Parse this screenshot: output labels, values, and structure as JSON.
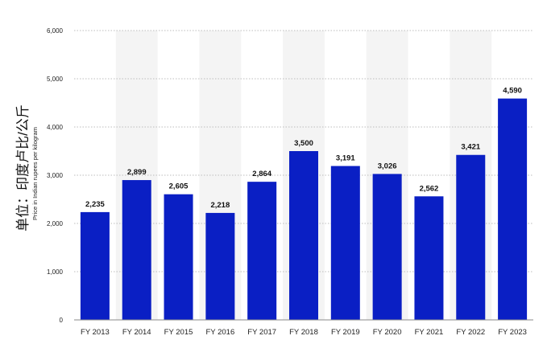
{
  "chart_data": {
    "type": "bar",
    "categories": [
      "FY 2013",
      "FY 2014",
      "FY 2015",
      "FY 2016",
      "FY 2017",
      "FY 2018",
      "FY 2019",
      "FY 2020",
      "FY 2021",
      "FY 2022",
      "FY 2023"
    ],
    "values": [
      2235,
      2899,
      2605,
      2218,
      2864,
      3500,
      3191,
      3026,
      2562,
      3421,
      4590
    ],
    "value_labels": [
      "2,235",
      "2,899",
      "2,605",
      "2,218",
      "2,864",
      "3,500",
      "3,191",
      "3,026",
      "2,562",
      "3,421",
      "4,590"
    ],
    "yticks": [
      0,
      1000,
      2000,
      3000,
      4000,
      5000,
      6000
    ],
    "ytick_labels": [
      "0",
      "1,000",
      "2,000",
      "3,000",
      "4,000",
      "5,000",
      "6,000"
    ],
    "ylim": [
      0,
      6000
    ],
    "ylabel": "单位：印度卢比/公斤",
    "ylabel_secondary": "Price in Indian rupees per kilogram",
    "xlabel": "",
    "title": "",
    "grid": "horizontal dotted",
    "legend": "none",
    "bar_color": "#0a1fc4",
    "band_color": "#f4f4f4",
    "grid_color": "#bdbdbd"
  }
}
